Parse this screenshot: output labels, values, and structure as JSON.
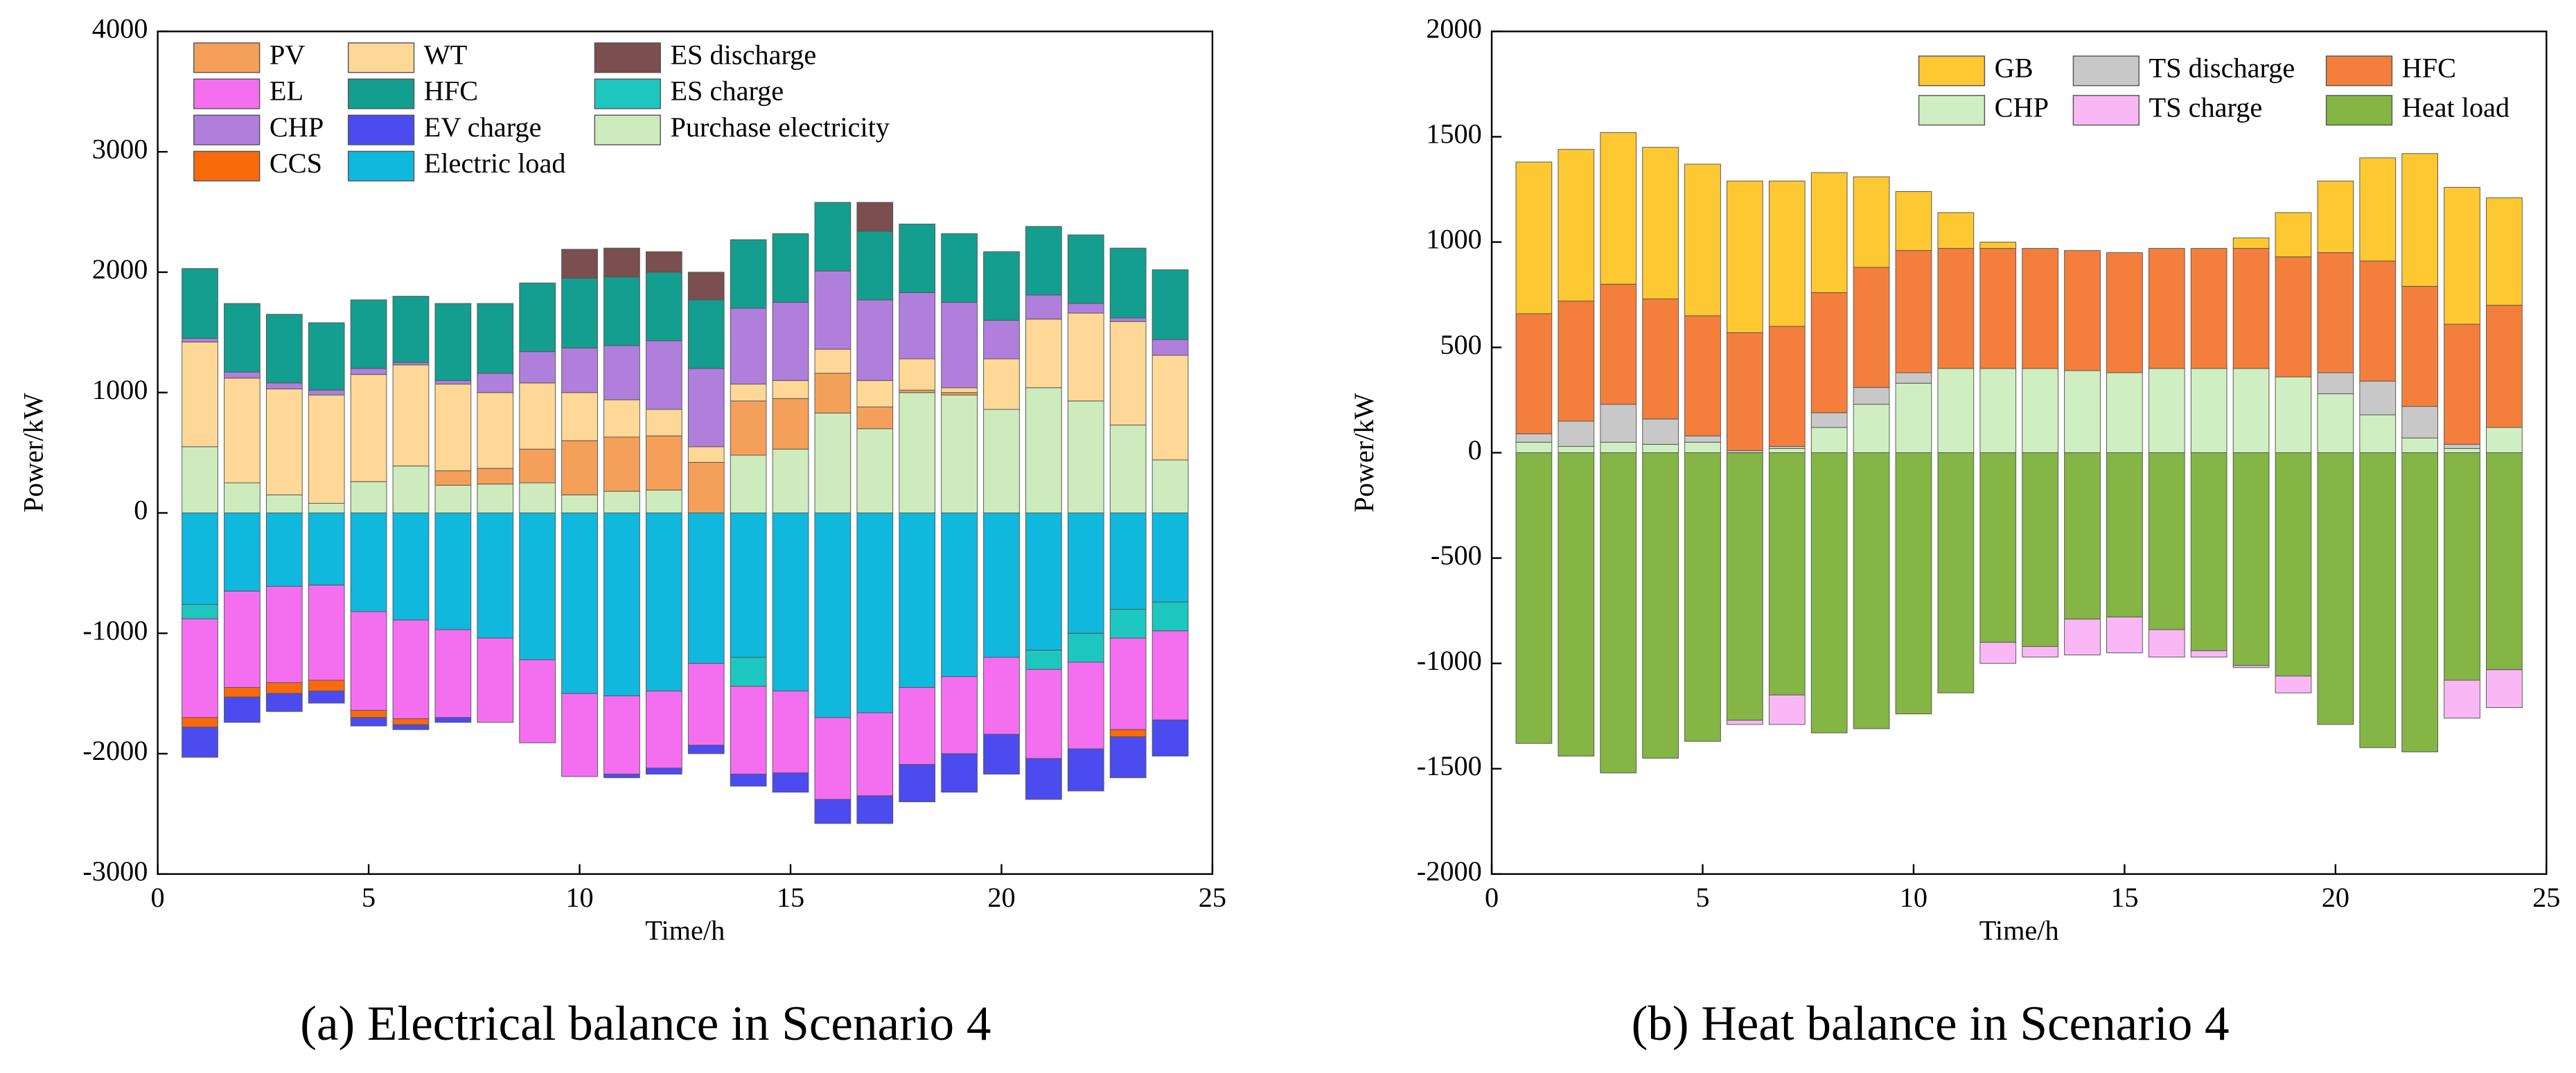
{
  "chart_data": [
    {
      "type": "bar",
      "stacked": true,
      "caption": "(a) Electrical balance in Scenario 4",
      "xlabel": "Time/h",
      "ylabel": "Power/kW",
      "x": [
        1,
        2,
        3,
        4,
        5,
        6,
        7,
        8,
        9,
        10,
        11,
        12,
        13,
        14,
        15,
        16,
        17,
        18,
        19,
        20,
        21,
        22,
        23,
        24
      ],
      "xlim": [
        0,
        25
      ],
      "xticks": [
        0,
        5,
        10,
        15,
        20,
        25
      ],
      "ylim": [
        -3000,
        4000
      ],
      "yticks": [
        -3000,
        -2000,
        -1000,
        0,
        1000,
        2000,
        3000,
        4000
      ],
      "series": [
        {
          "name": "Purchase electricity",
          "color": "#cdebbd",
          "values": [
            550,
            250,
            150,
            80,
            260,
            390,
            230,
            240,
            250,
            150,
            180,
            190,
            0,
            480,
            530,
            830,
            700,
            1000,
            980,
            860,
            1040,
            930,
            730,
            440
          ]
        },
        {
          "name": "PV",
          "color": "#f5a05a",
          "values": [
            0,
            0,
            0,
            0,
            0,
            0,
            120,
            130,
            280,
            450,
            450,
            450,
            420,
            450,
            420,
            330,
            180,
            20,
            20,
            0,
            0,
            0,
            0,
            0
          ]
        },
        {
          "name": "WT",
          "color": "#fdd896",
          "values": [
            870,
            870,
            880,
            900,
            890,
            840,
            720,
            630,
            550,
            400,
            310,
            220,
            130,
            140,
            150,
            200,
            220,
            260,
            40,
            420,
            570,
            730,
            860,
            870
          ]
        },
        {
          "name": "CHP",
          "color": "#b07fdc",
          "values": [
            30,
            50,
            50,
            40,
            50,
            20,
            30,
            160,
            260,
            370,
            450,
            570,
            650,
            630,
            650,
            650,
            670,
            550,
            710,
            320,
            200,
            80,
            30,
            130
          ]
        },
        {
          "name": "HFC",
          "color": "#139e8f",
          "values": [
            580,
            570,
            570,
            560,
            570,
            550,
            640,
            580,
            570,
            580,
            570,
            570,
            570,
            570,
            570,
            570,
            570,
            570,
            570,
            570,
            570,
            570,
            580,
            580
          ]
        },
        {
          "name": "ES discharge",
          "color": "#7b4f4f",
          "values": [
            0,
            0,
            0,
            0,
            0,
            0,
            0,
            0,
            0,
            240,
            240,
            170,
            230,
            0,
            0,
            0,
            240,
            0,
            0,
            0,
            0,
            0,
            0,
            0
          ]
        },
        {
          "name": "Electric load",
          "color": "#10b8de",
          "values": [
            -760,
            -650,
            -610,
            -600,
            -820,
            -890,
            -970,
            -1040,
            -1220,
            -1500,
            -1520,
            -1480,
            -1250,
            -1200,
            -1480,
            -1700,
            -1660,
            -1450,
            -1360,
            -1200,
            -1140,
            -1000,
            -800,
            -740
          ]
        },
        {
          "name": "ES charge",
          "color": "#1ec6c0",
          "values": [
            -120,
            0,
            0,
            0,
            0,
            0,
            0,
            0,
            0,
            0,
            0,
            0,
            0,
            -240,
            0,
            0,
            0,
            0,
            0,
            0,
            -160,
            -240,
            -240,
            -240
          ]
        },
        {
          "name": "EL",
          "color": "#f46ff0",
          "values": [
            -820,
            -800,
            -800,
            -790,
            -820,
            -820,
            -730,
            -700,
            -690,
            -690,
            -650,
            -640,
            -680,
            -730,
            -680,
            -680,
            -690,
            -640,
            -640,
            -640,
            -740,
            -720,
            -760,
            -740
          ]
        },
        {
          "name": "CCS",
          "color": "#f86a0c",
          "values": [
            -80,
            -80,
            -90,
            -90,
            -60,
            -50,
            0,
            0,
            0,
            0,
            0,
            0,
            0,
            0,
            0,
            0,
            0,
            0,
            0,
            0,
            0,
            0,
            -60,
            0
          ]
        },
        {
          "name": "EV charge",
          "color": "#4b4bf0",
          "values": [
            -250,
            -210,
            -150,
            -100,
            -70,
            -40,
            -40,
            0,
            0,
            0,
            -30,
            -50,
            -70,
            -100,
            -160,
            -200,
            -230,
            -310,
            -320,
            -330,
            -340,
            -350,
            -340,
            -300
          ]
        }
      ]
    },
    {
      "type": "bar",
      "stacked": true,
      "caption": "(b) Heat balance in Scenario 4",
      "xlabel": "Time/h",
      "ylabel": "Power/kW",
      "x": [
        1,
        2,
        3,
        4,
        5,
        6,
        7,
        8,
        9,
        10,
        11,
        12,
        13,
        14,
        15,
        16,
        17,
        18,
        19,
        20,
        21,
        22,
        23,
        24
      ],
      "xlim": [
        0,
        25
      ],
      "xticks": [
        0,
        5,
        10,
        15,
        20,
        25
      ],
      "ylim": [
        -2000,
        2000
      ],
      "yticks": [
        -2000,
        -1500,
        -1000,
        -500,
        0,
        500,
        1000,
        1500,
        2000
      ],
      "series": [
        {
          "name": "CHP",
          "color": "#cfeec2",
          "values": [
            50,
            30,
            50,
            40,
            50,
            0,
            20,
            120,
            230,
            330,
            400,
            400,
            400,
            390,
            380,
            400,
            400,
            400,
            360,
            280,
            180,
            70,
            20,
            120
          ]
        },
        {
          "name": "TS discharge",
          "color": "#c8c8c8",
          "values": [
            40,
            120,
            180,
            120,
            30,
            10,
            10,
            70,
            80,
            50,
            0,
            0,
            0,
            0,
            0,
            0,
            0,
            0,
            0,
            100,
            160,
            150,
            20,
            0
          ]
        },
        {
          "name": "HFC",
          "color": "#f47f3c",
          "values": [
            570,
            570,
            570,
            570,
            570,
            560,
            570,
            570,
            570,
            580,
            570,
            570,
            570,
            570,
            570,
            570,
            570,
            570,
            570,
            570,
            570,
            570,
            570,
            580
          ]
        },
        {
          "name": "GB",
          "color": "#fec832",
          "values": [
            720,
            720,
            720,
            720,
            720,
            720,
            690,
            570,
            430,
            280,
            170,
            30,
            0,
            0,
            0,
            0,
            0,
            50,
            210,
            340,
            490,
            630,
            650,
            510
          ]
        },
        {
          "name": "Heat load",
          "color": "#84b545",
          "values": [
            -1380,
            -1440,
            -1520,
            -1450,
            -1370,
            -1270,
            -1150,
            -1330,
            -1310,
            -1240,
            -1140,
            -900,
            -920,
            -790,
            -780,
            -840,
            -940,
            -1010,
            -1060,
            -1290,
            -1400,
            -1420,
            -1080,
            -1030
          ]
        },
        {
          "name": "TS charge",
          "color": "#f9b8f5",
          "values": [
            0,
            0,
            0,
            0,
            0,
            -20,
            -140,
            0,
            0,
            0,
            0,
            -100,
            -50,
            -170,
            -170,
            -130,
            -30,
            -10,
            -80,
            0,
            0,
            0,
            -180,
            -180
          ]
        }
      ]
    }
  ]
}
